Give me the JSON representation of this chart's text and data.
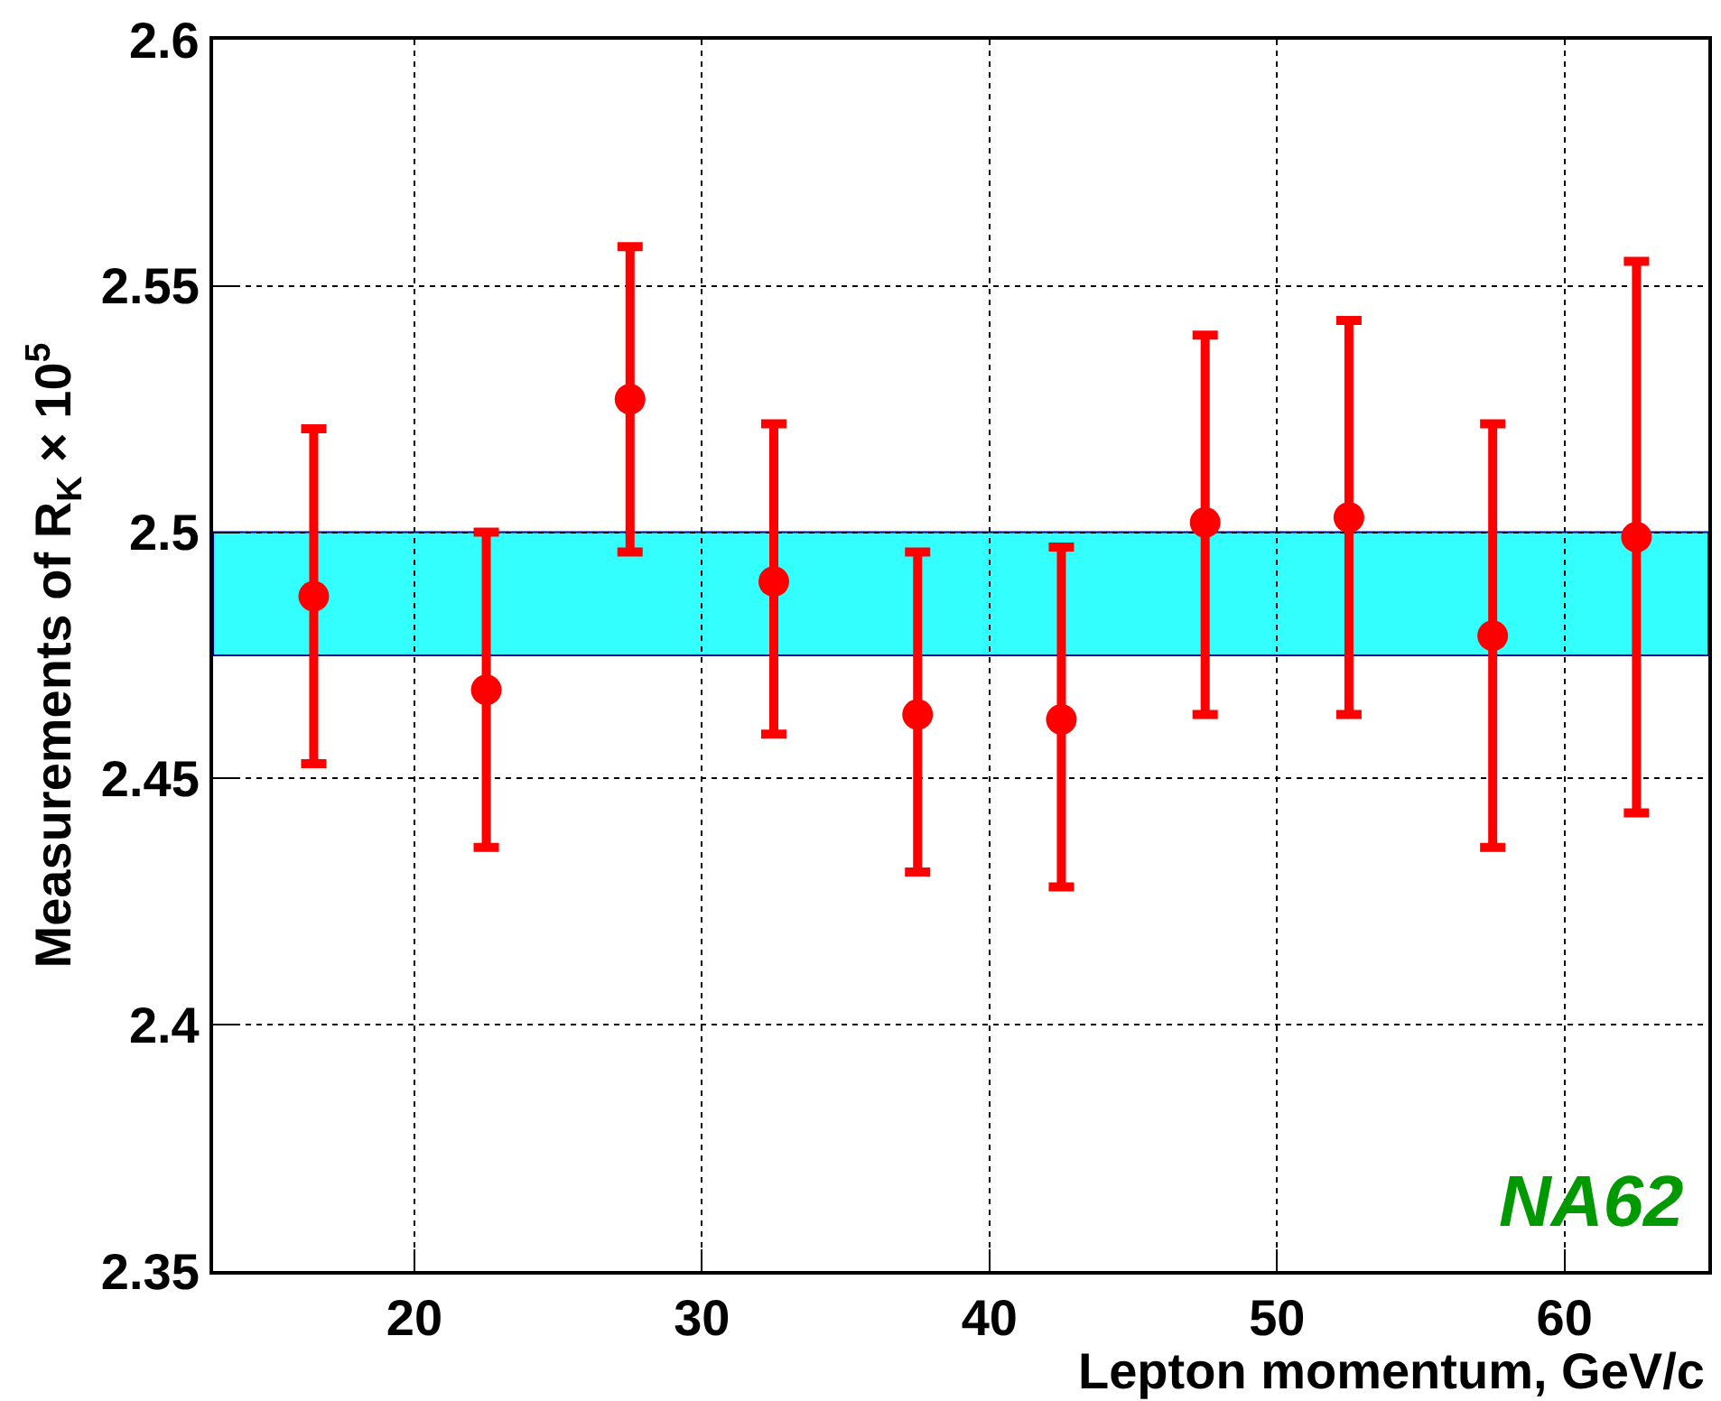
{
  "chart_data": {
    "type": "scatter",
    "xlabel": "Lepton momentum, GeV/c",
    "ylabel": "Measurements of R$_{K}$ × 10$^{5}$",
    "x": [
      16.5,
      22.5,
      27.5,
      32.5,
      37.5,
      42.5,
      47.5,
      52.5,
      57.5,
      62.5
    ],
    "series": [
      {
        "color": "#ff0000",
        "values": [
          2.487,
          2.468,
          2.527,
          2.49,
          2.463,
          2.462,
          2.502,
          2.503,
          2.479,
          2.499
        ],
        "errors": [
          [
            2.453,
            2.521
          ],
          [
            2.436,
            2.5
          ],
          [
            2.496,
            2.558
          ],
          [
            2.459,
            2.522
          ],
          [
            2.431,
            2.496
          ],
          [
            2.428,
            2.497
          ],
          [
            2.463,
            2.54
          ],
          [
            2.463,
            2.543
          ],
          [
            2.436,
            2.522
          ],
          [
            2.443,
            2.555
          ]
        ]
      }
    ],
    "marker": "circle",
    "bands": [
      {
        "axis": "y",
        "from": 2.475,
        "to": 2.5,
        "color": "#33ffff"
      }
    ],
    "annotations": [
      "NA62"
    ],
    "xlim": [
      13,
      65
    ],
    "xticks": [
      20,
      30,
      40,
      50,
      60
    ],
    "ylim": [
      2.35,
      2.6
    ],
    "yticks": [
      2.35,
      2.4,
      2.45,
      2.5,
      2.55,
      2.6
    ],
    "grid": true
  }
}
